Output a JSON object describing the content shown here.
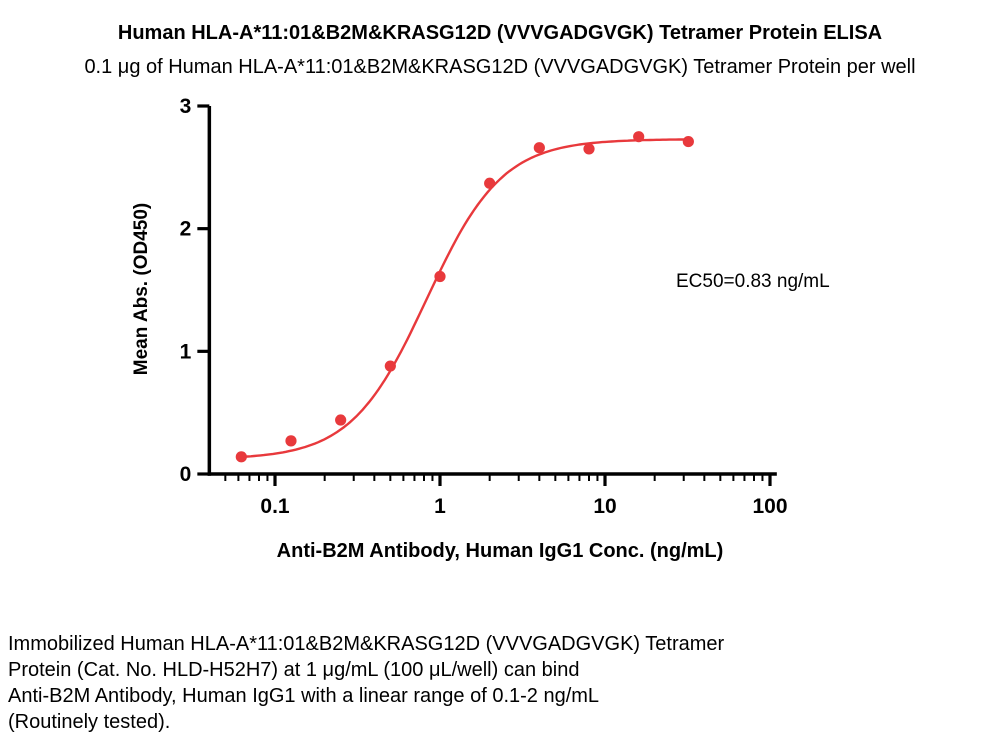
{
  "page": {
    "title": "Human HLA-A*11:01&B2M&KRASG12D (VVVGADGVGK) Tetramer Protein ELISA",
    "subtitle": "0.1 μg of Human HLA-A*11:01&B2M&KRASG12D (VVVGADGVGK) Tetramer Protein per well"
  },
  "chart_data": {
    "type": "scatter",
    "title": "Human HLA-A*11:01&B2M&KRASG12D (VVVGADGVGK) Tetramer Protein ELISA",
    "subtitle": "0.1 μg of Human HLA-A*11:01&B2M&KRASG12D (VVVGADGVGK) Tetramer Protein per well",
    "x_scale": "log",
    "x": [
      0.0625,
      0.125,
      0.25,
      0.5,
      1,
      2,
      4,
      8,
      16,
      32
    ],
    "y": [
      0.14,
      0.27,
      0.44,
      0.88,
      1.61,
      2.37,
      2.66,
      2.65,
      2.75,
      2.71
    ],
    "xlabel": "Anti-B2M Antibody, Human IgG1 Conc. (ng/mL)",
    "ylabel": "Mean Abs. (OD450)",
    "xlim": [
      0.04,
      110
    ],
    "ylim": [
      0,
      3
    ],
    "x_ticks": [
      0.1,
      1,
      10,
      100
    ],
    "x_tick_labels": [
      "0.1",
      "1",
      "10",
      "100"
    ],
    "y_ticks": [
      0,
      1,
      2,
      3
    ],
    "y_tick_labels": [
      "0",
      "1",
      "2",
      "3"
    ],
    "grid": false,
    "legend": "none",
    "annotation": "EC50=0.83 ng/mL",
    "fit": {
      "model": "4PL",
      "bottom": 0.12,
      "top": 2.73,
      "ec50": 0.83,
      "hill": 1.9
    },
    "marker_color": "#e8393c",
    "line_color": "#e8393c"
  },
  "footer": {
    "lines": [
      "Immobilized Human HLA-A*11:01&B2M&KRASG12D (VVVGADGVGK) Tetramer",
      "Protein (Cat. No. HLD-H52H7) at 1 μg/mL (100 μL/well) can bind",
      "Anti-B2M Antibody, Human IgG1 with a linear range of 0.1-2 ng/mL",
      "(Routinely tested)."
    ]
  }
}
